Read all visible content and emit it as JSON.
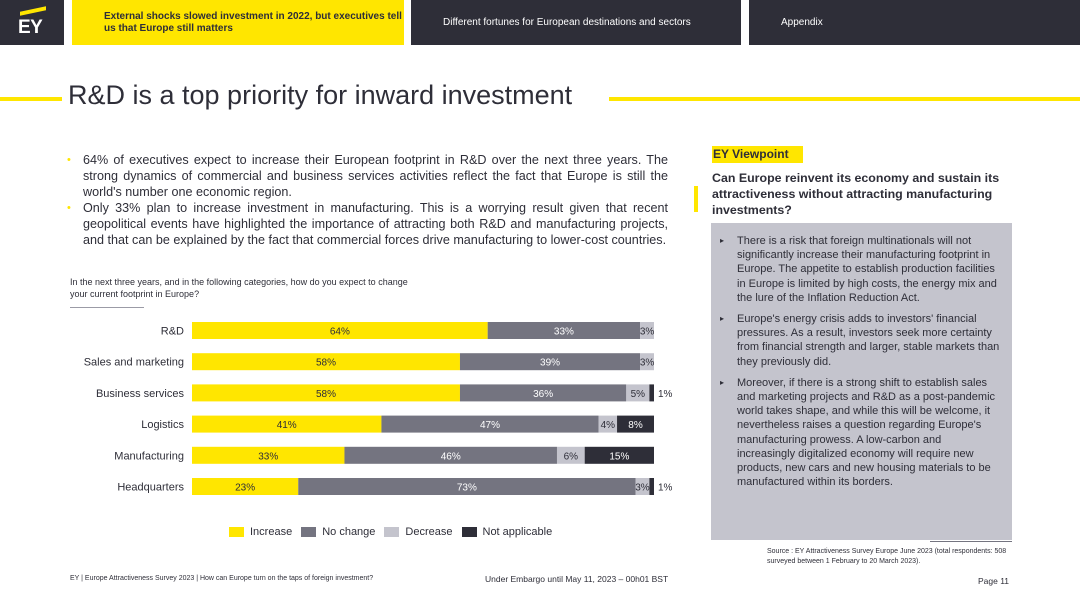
{
  "nav": {
    "logo": "EY",
    "tab1": "External shocks slowed investment in 2022, but executives tell us that Europe still matters",
    "tab2": "Different fortunes for European destinations and sectors",
    "tab3": "Appendix"
  },
  "page_title": "R&D is a top priority for inward investment",
  "bullets": [
    "64% of executives expect to increase their European footprint in R&D over the next three years. The strong dynamics of commercial and business services activities reflect the fact that Europe is still the world's number one economic region.",
    "Only 33% plan to increase investment in manufacturing. This is a worrying result given that recent geopolitical events have highlighted the importance of attracting both R&D and manufacturing projects, and that can be explained by the fact that commercial forces drive manufacturing to lower-cost countries."
  ],
  "chart_question": "In the next three years, and in the following categories, how do you expect to change your current footprint in Europe?",
  "chart_data": {
    "type": "bar",
    "orientation": "horizontal",
    "stacked": true,
    "categories": [
      "R&D",
      "Sales and marketing",
      "Business services",
      "Logistics",
      "Manufacturing",
      "Headquarters"
    ],
    "series": [
      {
        "name": "Increase",
        "color": "#ffe600",
        "values": [
          64,
          58,
          58,
          41,
          33,
          23
        ]
      },
      {
        "name": "No change",
        "color": "#747480",
        "values": [
          33,
          39,
          36,
          47,
          46,
          73
        ]
      },
      {
        "name": "Decrease",
        "color": "#c4c4cd",
        "values": [
          3,
          3,
          5,
          4,
          6,
          3
        ]
      },
      {
        "name": "Not applicable",
        "color": "#2e2e38",
        "values": [
          0,
          0,
          1,
          8,
          15,
          1
        ]
      }
    ],
    "unit": "%",
    "xlim": [
      0,
      100
    ],
    "legend": "bottom",
    "grid": false
  },
  "viewpoint": {
    "tag": "EY Viewpoint",
    "heading": "Can Europe reinvent its economy and sustain its attractiveness without attracting manufacturing investments?",
    "points": [
      "There is a risk that foreign multinationals will not significantly increase their manufacturing footprint in Europe. The appetite to establish production facilities in Europe is limited by high costs, the energy mix and the lure of the Inflation Reduction Act.",
      "Europe's energy crisis adds to investors' financial pressures. As a result, investors seek more certainty from financial strength and larger, stable markets than they previously did.",
      "Moreover, if there is a strong shift to establish sales and marketing projects and R&D as a post-pandemic world takes shape, and while this will be welcome, it nevertheless raises a question regarding Europe's manufacturing prowess. A low-carbon and increasingly digitalized economy will require new products, new cars and new housing materials to be manufactured within its borders."
    ]
  },
  "source": "Source : EY Attractiveness Survey Europe June 2023 (total respondents: 508 surveyed between 1 February to 20 March 2023).",
  "footer": {
    "left": "EY | Europe Attractiveness Survey 2023 | How can Europe turn on the taps of foreign investment?",
    "middle": "Under Embargo until May 11, 2023 – 00h01 BST",
    "page": "Page 11"
  }
}
